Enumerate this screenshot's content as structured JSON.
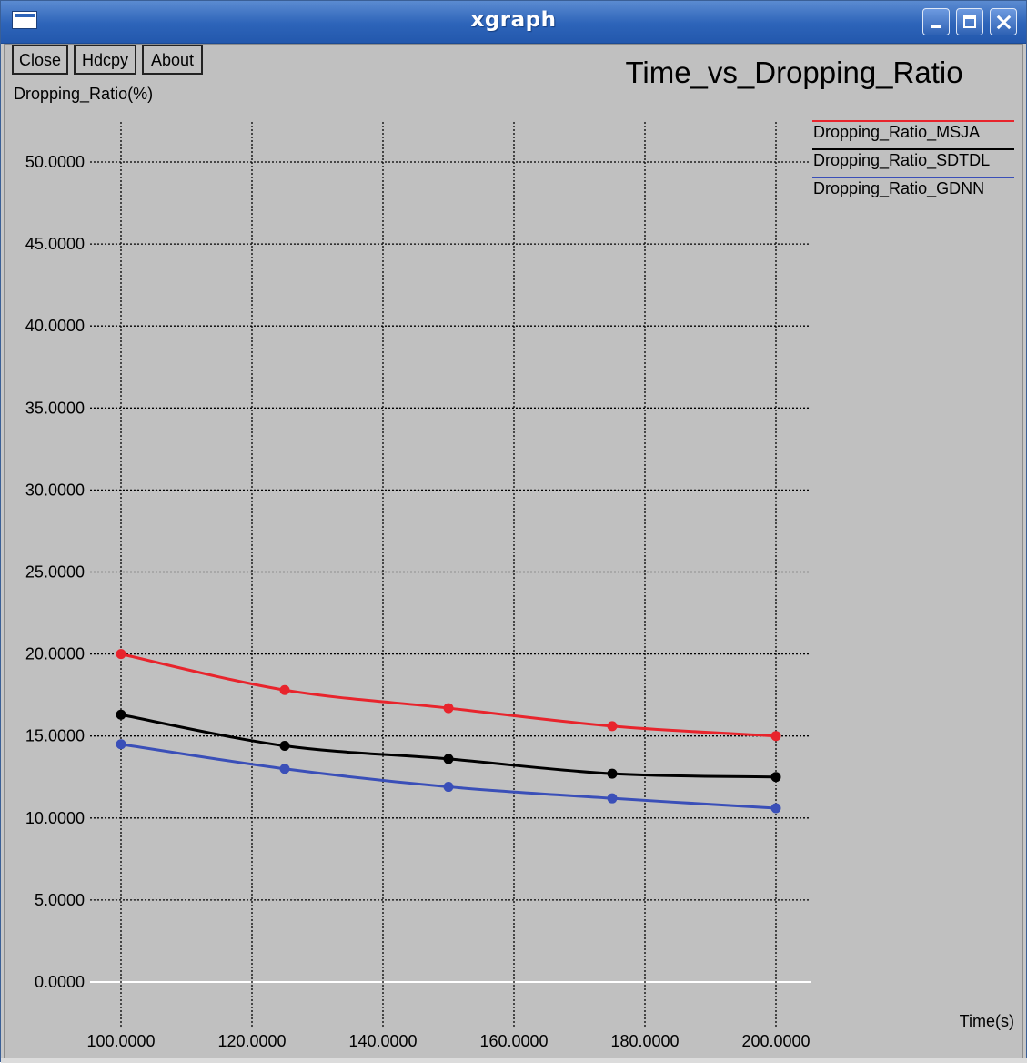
{
  "window": {
    "title": "xgraph"
  },
  "toolbar": {
    "close_label": "Close",
    "hdcpy_label": "Hdcpy",
    "about_label": "About"
  },
  "colors": {
    "msja": "#e8242c",
    "sdtdl": "#000000",
    "gdnn": "#3a4fb8",
    "zero_line": "#ffffff",
    "grid": "#000000"
  },
  "chart_data": {
    "type": "line",
    "title": "Time_vs_Dropping_Ratio",
    "xlabel": "Time(s)",
    "ylabel": "Dropping_Ratio(%)",
    "xlim": [
      100,
      200
    ],
    "ylim": [
      0,
      50
    ],
    "x": [
      100,
      125,
      150,
      175,
      200
    ],
    "xticks": [
      100,
      120,
      140,
      160,
      180,
      200
    ],
    "xtick_labels": [
      "100.0000",
      "120.0000",
      "140.0000",
      "160.0000",
      "180.0000",
      "200.0000"
    ],
    "yticks": [
      0,
      5,
      10,
      15,
      20,
      25,
      30,
      35,
      40,
      45,
      50
    ],
    "ytick_labels": [
      "0.0000",
      "5.0000",
      "10.0000",
      "15.0000",
      "20.0000",
      "25.0000",
      "30.0000",
      "35.0000",
      "40.0000",
      "45.0000",
      "50.0000"
    ],
    "grid": true,
    "legend_position": "top-right",
    "series": [
      {
        "name": "Dropping_Ratio_MSJA",
        "color": "#e8242c",
        "values": [
          20.0,
          17.8,
          16.7,
          15.6,
          15.0
        ]
      },
      {
        "name": "Dropping_Ratio_SDTDL",
        "color": "#000000",
        "values": [
          16.3,
          14.4,
          13.6,
          12.7,
          12.5
        ]
      },
      {
        "name": "Dropping_Ratio_GDNN",
        "color": "#3a4fb8",
        "values": [
          14.5,
          13.0,
          11.9,
          11.2,
          10.6
        ]
      }
    ]
  }
}
